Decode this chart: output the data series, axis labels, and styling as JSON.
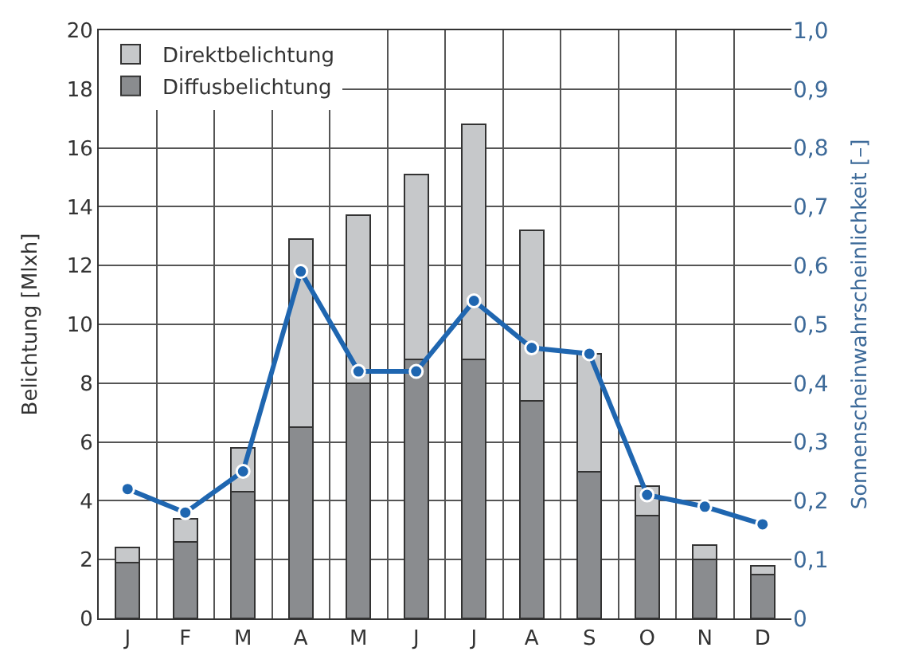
{
  "chart_data": {
    "type": "bar",
    "stacked": true,
    "categories": [
      "J",
      "F",
      "M",
      "A",
      "M",
      "J",
      "J",
      "A",
      "S",
      "O",
      "N",
      "D"
    ],
    "series": [
      {
        "name": "Diffusbelichtung",
        "color": "#8a8c8f",
        "values": [
          1.9,
          2.6,
          4.3,
          6.5,
          8.0,
          8.8,
          8.8,
          7.4,
          5.0,
          3.5,
          2.0,
          1.5
        ]
      },
      {
        "name": "Direktbelichtung",
        "color": "#c6c8ca",
        "values": [
          0.5,
          0.8,
          1.5,
          6.4,
          5.7,
          6.3,
          8.0,
          5.8,
          4.0,
          1.0,
          0.5,
          0.3
        ]
      },
      {
        "type": "line",
        "axis": "y2",
        "color": "#1f66b0",
        "values": [
          0.22,
          0.18,
          0.25,
          0.59,
          0.42,
          0.42,
          0.54,
          0.46,
          0.45,
          0.21,
          0.19,
          0.16
        ]
      }
    ],
    "ylabel": "Belichtung [Mlxh]",
    "y2label": "Sonnenscheinwahrscheinlichkeit [–]",
    "ylim": [
      0,
      20
    ],
    "yticks": [
      0,
      2,
      4,
      6,
      8,
      10,
      12,
      14,
      16,
      18,
      20
    ],
    "y2lim": [
      0,
      1.0
    ],
    "y2ticks": [
      0,
      {
        "value": 0.1,
        "label": "0,1"
      },
      {
        "value": 0.2,
        "label": "0,2"
      },
      {
        "value": 0.3,
        "label": "0,3"
      },
      {
        "value": 0.4,
        "label": "0,4"
      },
      {
        "value": 0.5,
        "label": "0,5"
      },
      {
        "value": 0.6,
        "label": "0,6"
      },
      {
        "value": 0.7,
        "label": "0,7"
      },
      {
        "value": 0.8,
        "label": "0,8"
      },
      {
        "value": 0.9,
        "label": "0,9"
      },
      {
        "value": 1.0,
        "label": "1,0"
      }
    ],
    "grid": true,
    "legend": "top left",
    "marker": "circle",
    "line_style": "solid"
  }
}
